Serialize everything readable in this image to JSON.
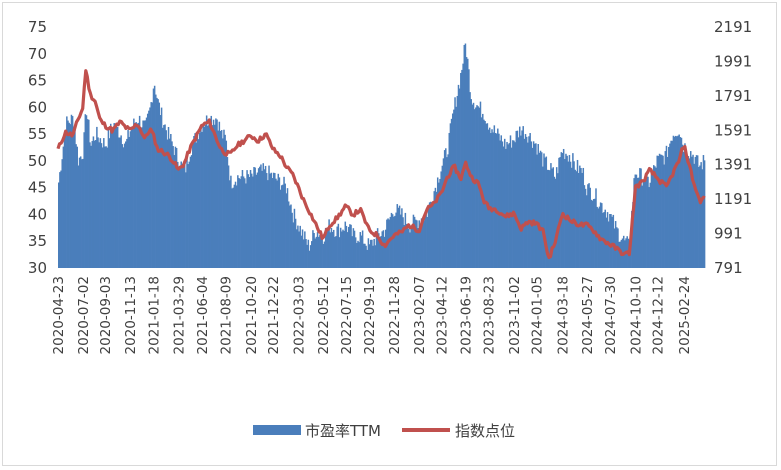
{
  "chart_data": {
    "type": "bar+line",
    "title": "",
    "left_axis": {
      "ticks": [
        "30",
        "35",
        "40",
        "45",
        "50",
        "55",
        "60",
        "65",
        "70",
        "75"
      ],
      "min": 30,
      "max": 75
    },
    "right_axis": {
      "ticks": [
        "791",
        "991",
        "1191",
        "1391",
        "1591",
        "1791",
        "1991",
        "2191"
      ],
      "min": 791,
      "max": 2191
    },
    "x_tick_labels": [
      "2020-04-23",
      "2020-07-02",
      "2020-09-03",
      "2020-11-13",
      "2021-01-18",
      "2021-03-29",
      "2021-06-04",
      "2021-08-09",
      "2021-10-20",
      "2021-12-22",
      "2022-03-03",
      "2022-05-12",
      "2022-07-15",
      "2022-09-19",
      "2022-11-28",
      "2023-02-07",
      "2023-04-12",
      "2023-06-19",
      "2023-08-23",
      "2023-11-02",
      "2024-01-05",
      "2024-03-18",
      "2024-05-27",
      "2024-07-30",
      "2024-10-10",
      "2024-12-12",
      "2025-02-24"
    ],
    "legend": [
      "市盈率TTM",
      "指数点位"
    ],
    "legend_placement": "bottom",
    "colors": {
      "bar": "#4a7ebb",
      "line": "#c0504d"
    },
    "series": [
      {
        "name": "市盈率TTM",
        "axis": "left",
        "kind": "bar",
        "x": [
          "2020-04-23",
          "2020-05-14",
          "2020-06-04",
          "2020-06-18",
          "2020-07-02",
          "2020-07-10",
          "2020-07-23",
          "2020-08-06",
          "2020-08-20",
          "2020-09-03",
          "2020-09-24",
          "2020-10-16",
          "2020-10-30",
          "2020-11-13",
          "2020-12-04",
          "2020-12-25",
          "2021-01-08",
          "2021-01-18",
          "2021-01-29",
          "2021-02-10",
          "2021-02-26",
          "2021-03-12",
          "2021-03-29",
          "2021-04-15",
          "2021-04-30",
          "2021-05-20",
          "2021-06-04",
          "2021-06-25",
          "2021-07-15",
          "2021-07-28",
          "2021-08-09",
          "2021-08-23",
          "2021-09-10",
          "2021-10-20",
          "2021-11-10",
          "2021-12-01",
          "2021-12-22",
          "2022-01-12",
          "2022-01-28",
          "2022-02-16",
          "2022-03-03",
          "2022-03-17",
          "2022-04-01",
          "2022-04-20",
          "2022-05-12",
          "2022-05-30",
          "2022-06-20",
          "2022-07-15",
          "2022-08-05",
          "2022-08-25",
          "2022-09-19",
          "2022-10-13",
          "2022-11-01",
          "2022-11-28",
          "2022-12-20",
          "2023-01-10",
          "2023-02-07",
          "2023-02-28",
          "2023-03-20",
          "2023-04-12",
          "2023-04-28",
          "2023-05-18",
          "2023-06-05",
          "2023-06-19",
          "2023-07-05",
          "2023-07-25",
          "2023-08-10",
          "2023-08-23",
          "2023-09-15",
          "2023-10-10",
          "2023-11-02",
          "2023-11-22",
          "2023-12-12",
          "2024-01-05",
          "2024-01-25",
          "2024-02-08",
          "2024-02-28",
          "2024-03-18",
          "2024-04-08",
          "2024-04-25",
          "2024-05-15",
          "2024-05-27",
          "2024-06-14",
          "2024-07-05",
          "2024-07-30",
          "2024-08-20",
          "2024-09-10",
          "2024-09-24",
          "2024-10-10",
          "2024-10-30",
          "2024-11-20",
          "2024-12-12",
          "2025-01-06",
          "2025-01-24",
          "2025-02-12",
          "2025-02-24",
          "2025-03-10",
          "2025-03-25",
          "2025-04-10",
          "2025-04-25"
        ],
        "values": [
          46,
          57,
          58,
          50,
          52,
          60,
          53,
          55,
          54,
          53,
          57,
          55,
          53,
          56,
          58,
          56,
          60,
          65,
          61,
          58,
          55,
          53,
          50,
          48,
          52,
          55,
          57,
          58,
          58,
          55,
          54,
          46,
          47,
          47,
          48,
          48,
          47,
          46,
          45,
          40,
          38,
          36,
          34,
          37,
          36,
          38,
          37,
          38,
          36,
          36,
          34,
          36,
          37,
          41,
          40,
          38,
          39,
          40,
          44,
          49,
          52,
          60,
          66,
          72,
          62,
          60,
          59,
          57,
          55,
          53,
          54,
          56,
          55,
          53,
          50,
          49,
          47,
          52,
          51,
          49,
          48,
          45,
          44,
          42,
          40,
          37,
          35,
          34,
          48,
          47,
          46,
          50,
          51,
          55,
          56,
          53,
          52,
          51,
          49,
          50
        ]
      },
      {
        "name": "指数点位",
        "axis": "right",
        "kind": "line",
        "x": [
          "2020-04-23",
          "2020-05-14",
          "2020-06-04",
          "2020-06-18",
          "2020-07-02",
          "2020-07-10",
          "2020-07-23",
          "2020-08-06",
          "2020-08-20",
          "2020-09-03",
          "2020-09-24",
          "2020-10-16",
          "2020-10-30",
          "2020-11-13",
          "2020-12-04",
          "2020-12-25",
          "2021-01-08",
          "2021-01-18",
          "2021-01-29",
          "2021-02-10",
          "2021-02-26",
          "2021-03-12",
          "2021-03-29",
          "2021-04-15",
          "2021-04-30",
          "2021-05-20",
          "2021-06-04",
          "2021-06-25",
          "2021-07-15",
          "2021-07-28",
          "2021-08-09",
          "2021-08-23",
          "2021-09-10",
          "2021-10-20",
          "2021-11-10",
          "2021-12-01",
          "2021-12-22",
          "2022-01-12",
          "2022-01-28",
          "2022-02-16",
          "2022-03-03",
          "2022-03-17",
          "2022-04-01",
          "2022-04-20",
          "2022-05-12",
          "2022-05-30",
          "2022-06-20",
          "2022-07-15",
          "2022-08-05",
          "2022-08-25",
          "2022-09-19",
          "2022-10-13",
          "2022-11-01",
          "2022-11-28",
          "2022-12-20",
          "2023-01-10",
          "2023-02-07",
          "2023-02-28",
          "2023-03-20",
          "2023-04-12",
          "2023-04-28",
          "2023-05-18",
          "2023-06-05",
          "2023-06-19",
          "2023-07-05",
          "2023-07-25",
          "2023-08-10",
          "2023-08-23",
          "2023-09-15",
          "2023-10-10",
          "2023-11-02",
          "2023-11-22",
          "2023-12-12",
          "2024-01-05",
          "2024-01-25",
          "2024-02-08",
          "2024-02-28",
          "2024-03-18",
          "2024-04-08",
          "2024-04-25",
          "2024-05-15",
          "2024-05-27",
          "2024-06-14",
          "2024-07-05",
          "2024-07-30",
          "2024-08-20",
          "2024-09-10",
          "2024-09-24",
          "2024-10-10",
          "2024-10-30",
          "2024-11-20",
          "2024-12-12",
          "2025-01-06",
          "2025-01-24",
          "2025-02-12",
          "2025-02-24",
          "2025-03-10",
          "2025-03-25",
          "2025-04-10",
          "2025-04-25"
        ],
        "values": [
          1480,
          1580,
          1560,
          1650,
          1720,
          1950,
          1800,
          1760,
          1650,
          1620,
          1590,
          1640,
          1610,
          1590,
          1630,
          1540,
          1600,
          1560,
          1480,
          1470,
          1450,
          1420,
          1360,
          1400,
          1480,
          1560,
          1620,
          1640,
          1540,
          1480,
          1460,
          1450,
          1500,
          1560,
          1530,
          1570,
          1480,
          1440,
          1380,
          1330,
          1260,
          1190,
          1130,
          1050,
          960,
          1040,
          1080,
          1150,
          1100,
          1130,
          1010,
          980,
          920,
          980,
          1000,
          1040,
          1010,
          1130,
          1160,
          1230,
          1320,
          1380,
          1310,
          1400,
          1320,
          1280,
          1180,
          1140,
          1130,
          1090,
          1110,
          1020,
          1060,
          1050,
          1000,
          840,
          950,
          1110,
          1070,
          1050,
          1040,
          1040,
          1010,
          960,
          930,
          900,
          870,
          880,
          1260,
          1290,
          1360,
          1310,
          1260,
          1340,
          1420,
          1510,
          1400,
          1280,
          1180,
          1200
        ]
      }
    ]
  }
}
